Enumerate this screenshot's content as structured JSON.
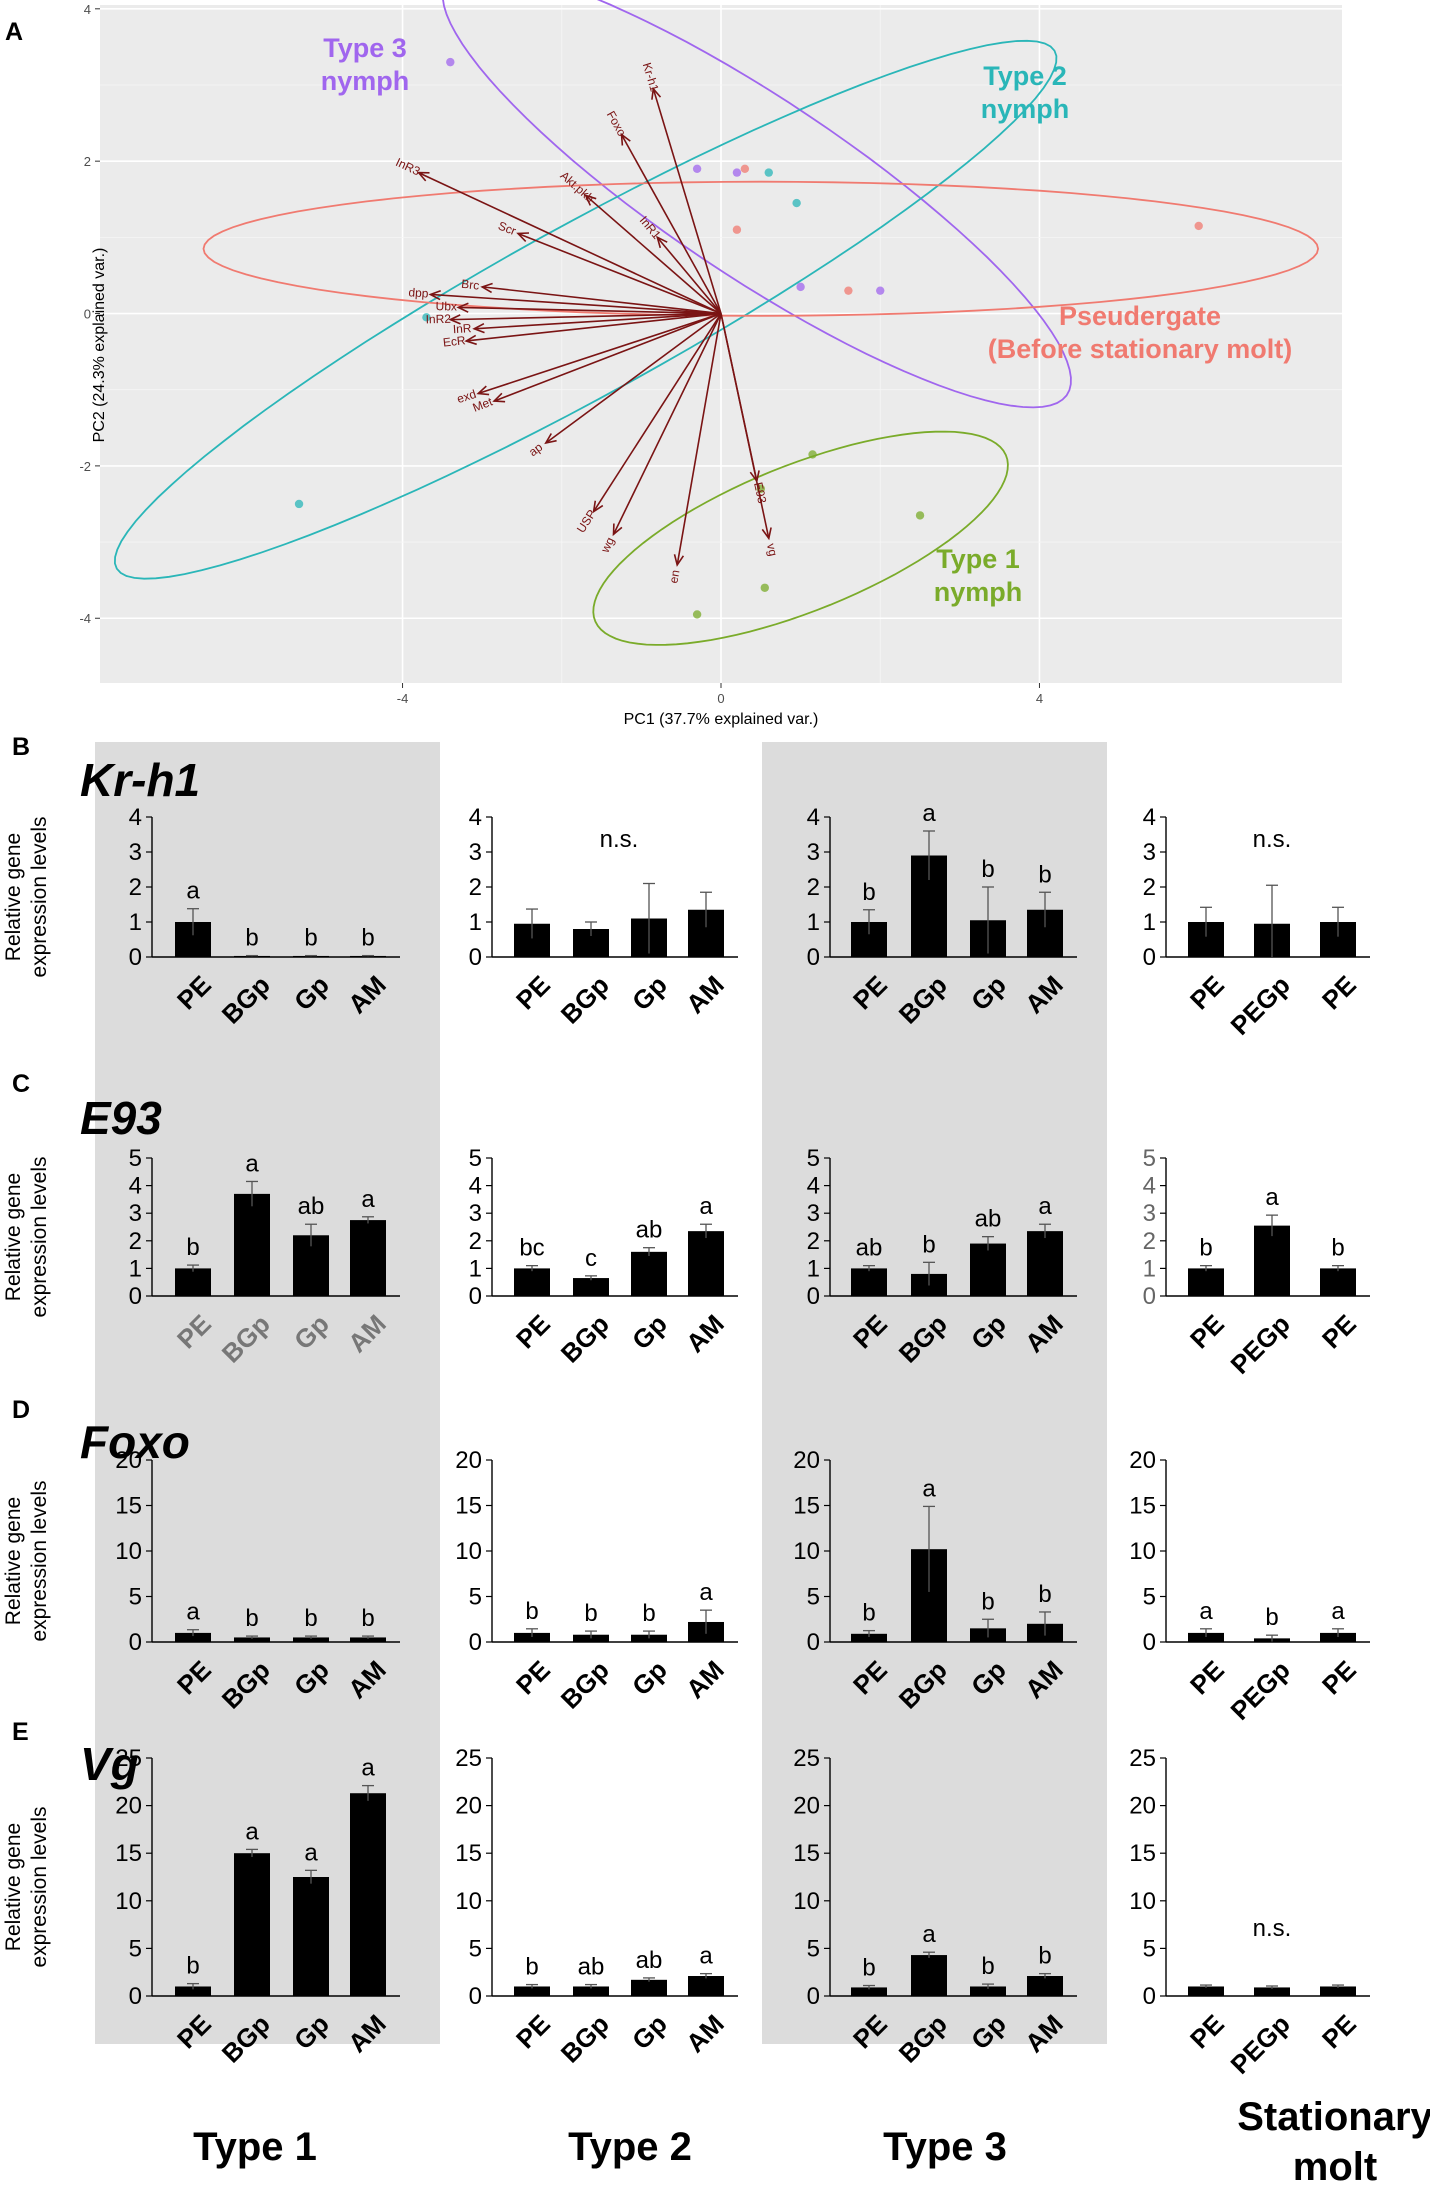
{
  "panel_labels": {
    "A": "A",
    "B": "B",
    "C": "C",
    "D": "D",
    "E": "E"
  },
  "column_titles": [
    "Type 1",
    "Type 2",
    "Type 3",
    "Stationary molt"
  ],
  "colors": {
    "type1": "#7aab2a",
    "type2": "#2ab6b8",
    "type3": "#a066ee",
    "pseudergate": "#f07a70",
    "arrow": "#7a1414",
    "plot_bg": "#ebebeb",
    "shade": "#dcdcdc",
    "bar": "#000000"
  },
  "chart_data": [
    {
      "type": "scatter",
      "subtype": "pca-biplot",
      "xlabel": "PC1 (37.7% explained var.)",
      "ylabel": "PC2 (24.3% explained var.)",
      "xlim": [
        -7.8,
        7.8
      ],
      "ylim": [
        -4.85,
        4.05
      ],
      "xticks": [
        -4,
        0,
        4
      ],
      "yticks": [
        -4,
        -2,
        0,
        2,
        4
      ],
      "groups": [
        {
          "name": "Type 3 nymph",
          "label_lines": [
            "Type 3",
            "nymph"
          ],
          "color": "#a066ee",
          "points": [
            [
              -3.4,
              3.3
            ],
            [
              -0.3,
              1.9
            ],
            [
              0.2,
              1.85
            ],
            [
              1.0,
              0.35
            ],
            [
              2.0,
              0.3
            ]
          ],
          "ellipse": {
            "cx": 0.45,
            "cy": 1.65,
            "rx": 4.75,
            "ry": 1.15,
            "angle_deg": -35
          }
        },
        {
          "name": "Type 2 nymph",
          "label_lines": [
            "Type 2",
            "nymph"
          ],
          "color": "#2ab6b8",
          "points": [
            [
              -5.3,
              -2.5
            ],
            [
              -3.7,
              -0.05
            ],
            [
              0.6,
              1.85
            ],
            [
              0.95,
              1.45
            ]
          ],
          "ellipse": {
            "cx": -1.7,
            "cy": 0.05,
            "rx": 6.8,
            "ry": 1.1,
            "angle_deg": 30
          }
        },
        {
          "name": "Pseudergate (Before stationary molt)",
          "label_lines": [
            "Pseudergate",
            "(Before stationary molt)"
          ],
          "color": "#f07a70",
          "points": [
            [
              0.2,
              1.1
            ],
            [
              1.6,
              0.3
            ],
            [
              6.0,
              1.15
            ],
            [
              0.3,
              1.9
            ]
          ],
          "ellipse": {
            "cx": 0.5,
            "cy": 0.85,
            "rx": 7.0,
            "ry": 0.88,
            "angle_deg": 0
          }
        },
        {
          "name": "Type 1 nymph",
          "label_lines": [
            "Type 1",
            "nymph"
          ],
          "color": "#7aab2a",
          "points": [
            [
              1.15,
              -1.85
            ],
            [
              2.5,
              -2.65
            ],
            [
              0.55,
              -3.6
            ],
            [
              -0.3,
              -3.95
            ],
            [
              0.5,
              -2.3
            ]
          ],
          "ellipse": {
            "cx": 1.0,
            "cy": -2.95,
            "rx": 2.8,
            "ry": 0.95,
            "angle_deg": 23
          }
        }
      ],
      "loadings": [
        {
          "name": "Kr-h1",
          "x": -0.85,
          "y": 2.95
        },
        {
          "name": "Foxo",
          "x": -1.25,
          "y": 2.35
        },
        {
          "name": "Akt.pkb",
          "x": -1.7,
          "y": 1.55
        },
        {
          "name": "InR1",
          "x": -0.8,
          "y": 1.0
        },
        {
          "name": "InR3",
          "x": -3.8,
          "y": 1.85
        },
        {
          "name": "Scr",
          "x": -2.55,
          "y": 1.05
        },
        {
          "name": "Brc",
          "x": -3.0,
          "y": 0.35
        },
        {
          "name": "dpp",
          "x": -3.65,
          "y": 0.25
        },
        {
          "name": "Ubx",
          "x": -3.3,
          "y": 0.08
        },
        {
          "name": "InR2",
          "x": -3.4,
          "y": -0.08
        },
        {
          "name": "InR",
          "x": -3.1,
          "y": -0.2
        },
        {
          "name": "EcR",
          "x": -3.2,
          "y": -0.36
        },
        {
          "name": "exd",
          "x": -3.05,
          "y": -1.05
        },
        {
          "name": "Met",
          "x": -2.85,
          "y": -1.15
        },
        {
          "name": "ap",
          "x": -2.2,
          "y": -1.7
        },
        {
          "name": "USP",
          "x": -1.6,
          "y": -2.6
        },
        {
          "name": "wg",
          "x": -1.35,
          "y": -2.9
        },
        {
          "name": "en",
          "x": -0.55,
          "y": -3.3
        },
        {
          "name": "E93",
          "x": 0.45,
          "y": -2.2
        },
        {
          "name": "vg",
          "x": 0.6,
          "y": -2.95
        }
      ]
    },
    {
      "type": "bar",
      "gene": "Kr-h1",
      "ylabel": [
        "Relative gene",
        "expression levels"
      ],
      "ylim": [
        0,
        4
      ],
      "yticks": [
        0,
        1,
        2,
        3,
        4
      ],
      "panels": [
        {
          "column": "Type 1",
          "categories": [
            "PE",
            "BGp",
            "Gp",
            "AM"
          ],
          "values": [
            1.0,
            0.03,
            0.03,
            0.03
          ],
          "errors": [
            0.38,
            0.01,
            0.01,
            0.01
          ],
          "letters": [
            "a",
            "b",
            "b",
            "b"
          ],
          "note": ""
        },
        {
          "column": "Type 2",
          "categories": [
            "PE",
            "BGp",
            "Gp",
            "AM"
          ],
          "values": [
            0.95,
            0.8,
            1.1,
            1.35
          ],
          "errors": [
            0.42,
            0.2,
            1.0,
            0.5
          ],
          "letters": [
            "",
            "",
            "",
            ""
          ],
          "note": "n.s."
        },
        {
          "column": "Type 3",
          "categories": [
            "PE",
            "BGp",
            "Gp",
            "AM"
          ],
          "values": [
            1.0,
            2.9,
            1.05,
            1.35
          ],
          "errors": [
            0.35,
            0.7,
            0.95,
            0.5
          ],
          "letters": [
            "b",
            "a",
            "b",
            "b"
          ],
          "note": ""
        },
        {
          "column": "Stationary molt",
          "categories": [
            "PE",
            "PEGp",
            "PE"
          ],
          "values": [
            1.0,
            0.95,
            1.0
          ],
          "errors": [
            0.42,
            1.1,
            0.42
          ],
          "letters": [
            "",
            "",
            ""
          ],
          "note": "n.s."
        }
      ]
    },
    {
      "type": "bar",
      "gene": "E93",
      "ylabel": [
        "Relative gene",
        "expression levels"
      ],
      "ylim": [
        0,
        5
      ],
      "yticks": [
        0,
        1,
        2,
        3,
        4,
        5
      ],
      "panels": [
        {
          "column": "Type 1",
          "categories": [
            "PE",
            "BGp",
            "Gp",
            "AM"
          ],
          "values": [
            1.0,
            3.7,
            2.2,
            2.75
          ],
          "errors": [
            0.12,
            0.45,
            0.4,
            0.12
          ],
          "letters": [
            "b",
            "a",
            "ab",
            "a"
          ],
          "note": ""
        },
        {
          "column": "Type 2",
          "categories": [
            "PE",
            "BGp",
            "Gp",
            "AM"
          ],
          "values": [
            1.0,
            0.65,
            1.6,
            2.35
          ],
          "errors": [
            0.1,
            0.08,
            0.15,
            0.25
          ],
          "letters": [
            "bc",
            "c",
            "ab",
            "a"
          ],
          "note": ""
        },
        {
          "column": "Type 3",
          "categories": [
            "PE",
            "BGp",
            "Gp",
            "AM"
          ],
          "values": [
            1.0,
            0.8,
            1.9,
            2.35
          ],
          "errors": [
            0.1,
            0.42,
            0.25,
            0.25
          ],
          "letters": [
            "ab",
            "b",
            "ab",
            "a"
          ],
          "note": ""
        },
        {
          "column": "Stationary molt",
          "categories": [
            "PE",
            "PEGp",
            "PE"
          ],
          "values": [
            1.0,
            2.55,
            1.0
          ],
          "errors": [
            0.1,
            0.38,
            0.1
          ],
          "letters": [
            "b",
            "a",
            "b"
          ],
          "note": ""
        }
      ]
    },
    {
      "type": "bar",
      "gene": "Foxo",
      "ylabel": [
        "Relative gene",
        "expression levels"
      ],
      "ylim": [
        0,
        20
      ],
      "yticks": [
        0,
        5,
        10,
        15,
        20
      ],
      "panels": [
        {
          "column": "Type 1",
          "categories": [
            "PE",
            "BGp",
            "Gp",
            "AM"
          ],
          "values": [
            1.0,
            0.5,
            0.5,
            0.5
          ],
          "errors": [
            0.35,
            0.15,
            0.15,
            0.15
          ],
          "letters": [
            "a",
            "b",
            "b",
            "b"
          ],
          "note": ""
        },
        {
          "column": "Type 2",
          "categories": [
            "PE",
            "BGp",
            "Gp",
            "AM"
          ],
          "values": [
            1.0,
            0.8,
            0.8,
            2.2
          ],
          "errors": [
            0.45,
            0.4,
            0.4,
            1.3
          ],
          "letters": [
            "b",
            "b",
            "b",
            "a"
          ],
          "note": ""
        },
        {
          "column": "Type 3",
          "categories": [
            "PE",
            "BGp",
            "Gp",
            "AM"
          ],
          "values": [
            0.9,
            10.2,
            1.5,
            2.0
          ],
          "errors": [
            0.35,
            4.7,
            1.0,
            1.3
          ],
          "letters": [
            "b",
            "a",
            "b",
            "b"
          ],
          "note": ""
        },
        {
          "column": "Stationary molt",
          "categories": [
            "PE",
            "PEGp",
            "PE"
          ],
          "values": [
            1.0,
            0.4,
            1.0
          ],
          "errors": [
            0.45,
            0.35,
            0.45
          ],
          "letters": [
            "a",
            "b",
            "a"
          ],
          "note": ""
        }
      ]
    },
    {
      "type": "bar",
      "gene": "Vg",
      "ylabel": [
        "Relative gene",
        "expression levels"
      ],
      "ylim": [
        0,
        25
      ],
      "yticks": [
        0,
        5,
        10,
        15,
        20,
        25
      ],
      "panels": [
        {
          "column": "Type 1",
          "categories": [
            "PE",
            "BGp",
            "Gp",
            "AM"
          ],
          "values": [
            1.0,
            15.0,
            12.5,
            21.3
          ],
          "errors": [
            0.3,
            0.4,
            0.7,
            0.8
          ],
          "letters": [
            "b",
            "a",
            "a",
            "a"
          ],
          "note": ""
        },
        {
          "column": "Type 2",
          "categories": [
            "PE",
            "BGp",
            "Gp",
            "AM"
          ],
          "values": [
            1.0,
            1.0,
            1.7,
            2.1
          ],
          "errors": [
            0.2,
            0.2,
            0.2,
            0.25
          ],
          "letters": [
            "b",
            "ab",
            "ab",
            "a"
          ],
          "note": ""
        },
        {
          "column": "Type 3",
          "categories": [
            "PE",
            "BGp",
            "Gp",
            "AM"
          ],
          "values": [
            0.9,
            4.3,
            1.0,
            2.1
          ],
          "errors": [
            0.2,
            0.3,
            0.25,
            0.25
          ],
          "letters": [
            "b",
            "a",
            "b",
            "b"
          ],
          "note": ""
        },
        {
          "column": "Stationary molt",
          "categories": [
            "PE",
            "PEGp",
            "PE"
          ],
          "values": [
            1.0,
            0.9,
            1.0
          ],
          "errors": [
            0.15,
            0.15,
            0.15
          ],
          "letters": [
            "",
            "",
            ""
          ],
          "note": "n.s."
        }
      ]
    }
  ]
}
